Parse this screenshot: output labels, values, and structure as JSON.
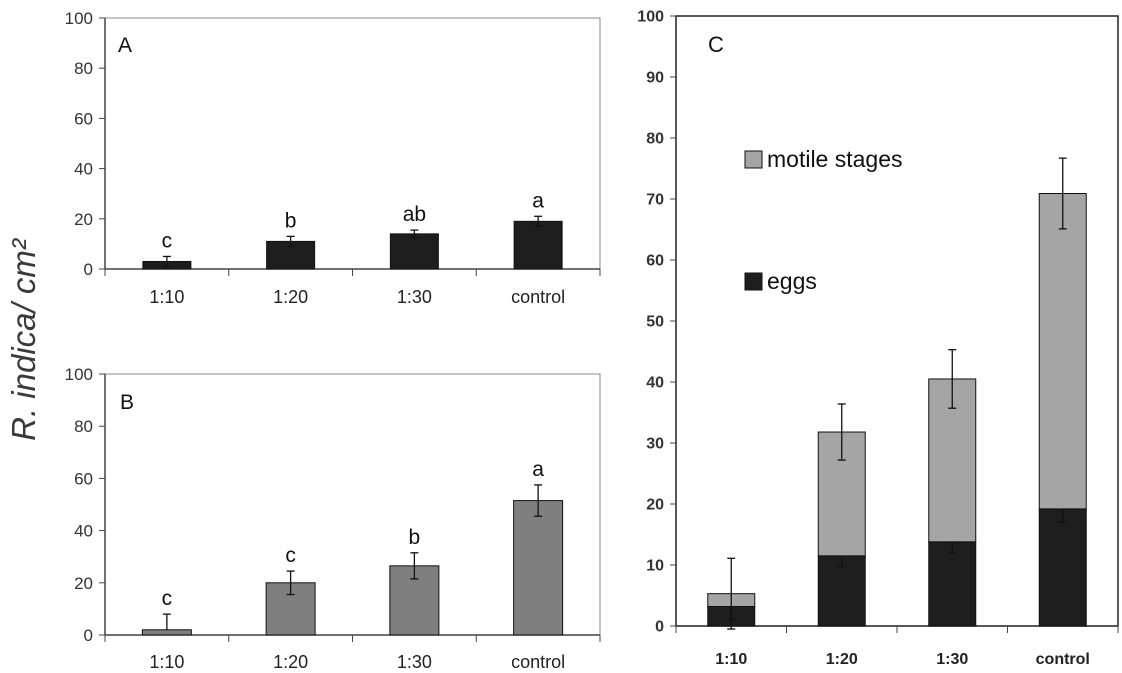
{
  "figure": {
    "shared_ylabel": "R. indica/ cm²"
  },
  "chart_data": [
    {
      "panel": "A",
      "type": "bar",
      "categories": [
        "1:10",
        "1:20",
        "1:30",
        "control"
      ],
      "ylim": [
        0,
        100
      ],
      "yticks": [
        0,
        20,
        40,
        60,
        80,
        100
      ],
      "series": [
        {
          "values": [
            3,
            11,
            14,
            19
          ],
          "errors": [
            2,
            2,
            1.5,
            2
          ],
          "color": "#1e1e1e"
        }
      ],
      "significance_letters": [
        "c",
        "b",
        "ab",
        "a"
      ],
      "panel_label": "A",
      "grid": false
    },
    {
      "panel": "B",
      "type": "bar",
      "categories": [
        "1:10",
        "1:20",
        "1:30",
        "control"
      ],
      "ylim": [
        0,
        100
      ],
      "yticks": [
        0,
        20,
        40,
        60,
        80,
        100
      ],
      "series": [
        {
          "values": [
            2,
            20,
            26.5,
            51.5
          ],
          "errors": [
            6,
            4.5,
            5,
            6
          ],
          "color": "#7f7f7f"
        }
      ],
      "significance_letters": [
        "c",
        "c",
        "b",
        "a"
      ],
      "panel_label": "B",
      "grid": false
    },
    {
      "panel": "C",
      "type": "bar",
      "stacked": true,
      "categories": [
        "1:10",
        "1:20",
        "1:30",
        "control"
      ],
      "ylim": [
        0,
        100
      ],
      "yticks": [
        0,
        10,
        20,
        30,
        40,
        50,
        60,
        70,
        80,
        90,
        100
      ],
      "series": [
        {
          "name": "eggs",
          "values": [
            3.2,
            11.5,
            13.8,
            19.2
          ],
          "errors": [
            2,
            1.8,
            1.8,
            2.2
          ],
          "color": "#1e1e1e"
        },
        {
          "name": "motile stages",
          "values": [
            2.1,
            20.3,
            26.7,
            51.7
          ],
          "errors": [
            5.8,
            4.6,
            4.8,
            5.8
          ],
          "color": "#a5a5a5"
        }
      ],
      "legend": {
        "placement": "upper-left"
      },
      "panel_label": "C",
      "grid": false
    }
  ]
}
